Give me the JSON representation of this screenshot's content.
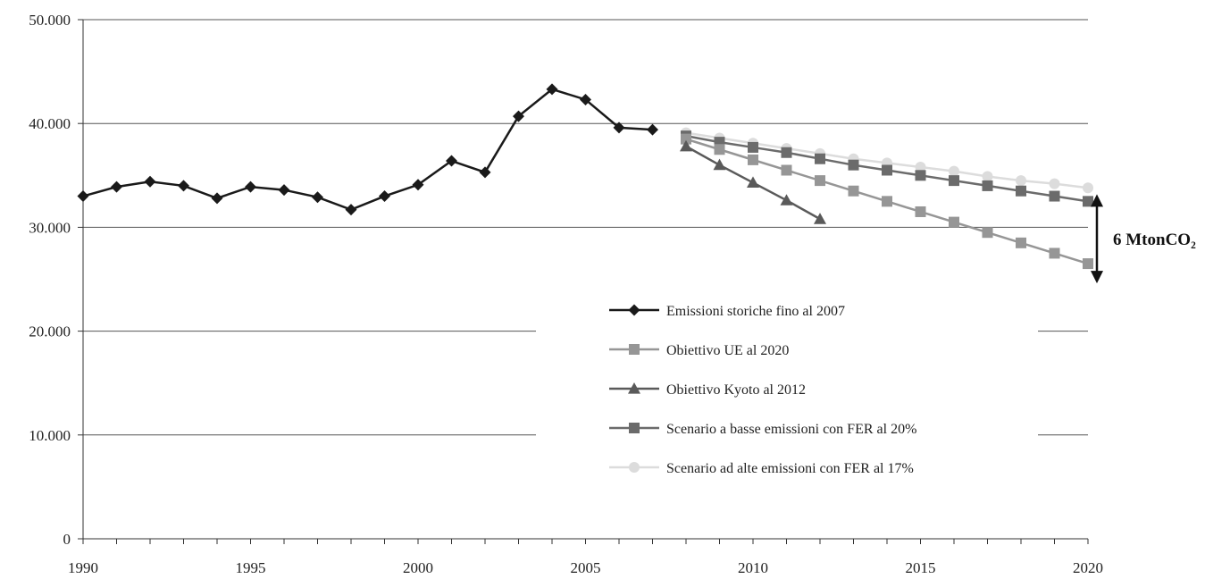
{
  "chart_data": {
    "type": "line",
    "x": [
      1990,
      1991,
      1992,
      1993,
      1994,
      1995,
      1996,
      1997,
      1998,
      1999,
      2000,
      2001,
      2002,
      2003,
      2004,
      2005,
      2006,
      2007,
      2008,
      2009,
      2010,
      2011,
      2012,
      2013,
      2014,
      2015,
      2016,
      2017,
      2018,
      2019,
      2020
    ],
    "xlim": [
      1990,
      2020
    ],
    "ylim": [
      0,
      50000
    ],
    "x_ticks": [
      "1990",
      "1995",
      "2000",
      "2005",
      "2010",
      "2015",
      "2020"
    ],
    "y_ticks": [
      "0",
      "10.000",
      "20.000",
      "30.000",
      "40.000",
      "50.000"
    ],
    "grid": "horizontal",
    "legend_position": "center-right",
    "series": [
      {
        "name": "Emissioni storiche fino al 2007",
        "marker": "diamond",
        "color": "#1a1a1a",
        "points": [
          [
            1990,
            33000
          ],
          [
            1991,
            33900
          ],
          [
            1992,
            34400
          ],
          [
            1993,
            34000
          ],
          [
            1994,
            32800
          ],
          [
            1995,
            33900
          ],
          [
            1996,
            33600
          ],
          [
            1997,
            32900
          ],
          [
            1998,
            31700
          ],
          [
            1999,
            33000
          ],
          [
            2000,
            34100
          ],
          [
            2001,
            36400
          ],
          [
            2002,
            35300
          ],
          [
            2003,
            40700
          ],
          [
            2004,
            43300
          ],
          [
            2005,
            42300
          ],
          [
            2006,
            39600
          ],
          [
            2007,
            39400
          ]
        ]
      },
      {
        "name": "Obiettivo UE al 2020",
        "marker": "square",
        "color": "#969696",
        "points": [
          [
            2008,
            38500
          ],
          [
            2009,
            37500
          ],
          [
            2010,
            36500
          ],
          [
            2011,
            35500
          ],
          [
            2012,
            34500
          ],
          [
            2013,
            33500
          ],
          [
            2014,
            32500
          ],
          [
            2015,
            31500
          ],
          [
            2016,
            30500
          ],
          [
            2017,
            29500
          ],
          [
            2018,
            28500
          ],
          [
            2019,
            27500
          ],
          [
            2020,
            26500
          ]
        ]
      },
      {
        "name": "Obiettivo Kyoto al 2012",
        "marker": "triangle",
        "color": "#5a5a5a",
        "points": [
          [
            2008,
            37800
          ],
          [
            2009,
            36000
          ],
          [
            2010,
            34300
          ],
          [
            2011,
            32600
          ],
          [
            2012,
            30800
          ]
        ]
      },
      {
        "name": "Scenario a basse emissioni con FER al 20%",
        "marker": "square",
        "color": "#6b6b6b",
        "points": [
          [
            2008,
            38800
          ],
          [
            2009,
            38200
          ],
          [
            2010,
            37700
          ],
          [
            2011,
            37200
          ],
          [
            2012,
            36600
          ],
          [
            2013,
            36000
          ],
          [
            2014,
            35500
          ],
          [
            2015,
            35000
          ],
          [
            2016,
            34500
          ],
          [
            2017,
            34000
          ],
          [
            2018,
            33500
          ],
          [
            2019,
            33000
          ],
          [
            2020,
            32500
          ]
        ]
      },
      {
        "name": "Scenario ad alte emissioni con FER al 17%",
        "marker": "circle",
        "color": "#dcdcdc",
        "points": [
          [
            2008,
            39100
          ],
          [
            2009,
            38600
          ],
          [
            2010,
            38100
          ],
          [
            2011,
            37600
          ],
          [
            2012,
            37100
          ],
          [
            2013,
            36600
          ],
          [
            2014,
            36200
          ],
          [
            2015,
            35800
          ],
          [
            2016,
            35400
          ],
          [
            2017,
            34900
          ],
          [
            2018,
            34500
          ],
          [
            2019,
            34200
          ],
          [
            2020,
            33800
          ]
        ]
      }
    ],
    "annotation": {
      "text": "6 MtonCO₂",
      "from": 32500,
      "to": 26500
    }
  }
}
